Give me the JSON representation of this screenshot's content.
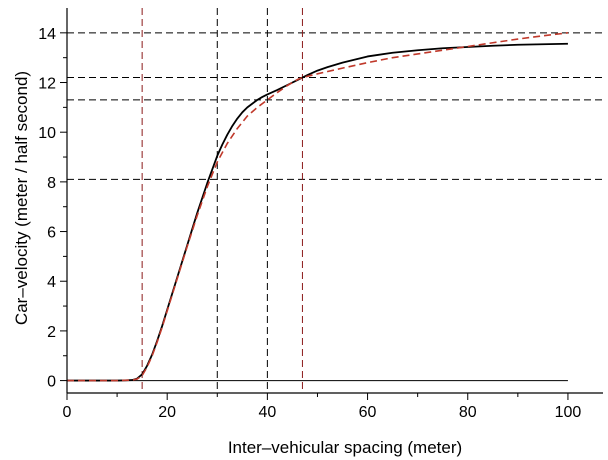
{
  "chart_data": {
    "type": "line",
    "title": "",
    "xlabel": "Inter–vehicular spacing (meter)",
    "ylabel": "Car–velocity (meter / half second)",
    "xlim": [
      0,
      107
    ],
    "ylim": [
      -0.5,
      15
    ],
    "x_ticks": [
      0,
      20,
      40,
      60,
      80,
      100
    ],
    "y_ticks": [
      0,
      2,
      4,
      6,
      8,
      10,
      12,
      14
    ],
    "x_tick_labels": [
      "0",
      "20",
      "40",
      "60",
      "80",
      "100"
    ],
    "y_tick_labels": [
      "0",
      "2",
      "4",
      "6",
      "8",
      "10",
      "12",
      "14"
    ],
    "grid": false,
    "series": [
      {
        "style": "solid",
        "color": "#000000",
        "x": [
          0,
          10,
          13,
          14,
          15,
          16,
          17,
          18,
          19,
          20,
          21,
          22,
          23,
          24,
          25,
          26,
          27,
          28,
          29,
          30,
          31,
          32,
          33,
          34,
          35,
          36,
          37,
          38,
          39,
          40,
          42,
          44,
          46,
          48,
          50,
          52,
          55,
          60,
          65,
          70,
          75,
          80,
          85,
          90,
          95,
          100
        ],
        "y": [
          0,
          0,
          0.02,
          0.08,
          0.25,
          0.6,
          1.05,
          1.6,
          2.2,
          2.85,
          3.5,
          4.15,
          4.8,
          5.45,
          6.1,
          6.75,
          7.35,
          7.95,
          8.5,
          9.05,
          9.5,
          9.9,
          10.25,
          10.55,
          10.8,
          11.0,
          11.15,
          11.3,
          11.42,
          11.52,
          11.7,
          11.9,
          12.1,
          12.3,
          12.48,
          12.62,
          12.8,
          13.05,
          13.2,
          13.3,
          13.38,
          13.43,
          13.48,
          13.52,
          13.54,
          13.56
        ]
      },
      {
        "style": "dashed",
        "color": "#c0392b",
        "x": [
          0,
          10,
          13,
          14,
          15,
          16,
          17,
          18,
          19,
          20,
          22,
          24,
          26,
          28,
          30,
          32,
          34,
          36,
          38,
          40,
          42,
          44,
          46,
          47,
          50,
          55,
          60,
          65,
          70,
          75,
          80,
          85,
          90,
          95,
          100
        ],
        "y": [
          0,
          0,
          0.02,
          0.06,
          0.2,
          0.55,
          1.0,
          1.55,
          2.15,
          2.8,
          4.1,
          5.4,
          6.65,
          7.8,
          8.8,
          9.55,
          10.15,
          10.65,
          11.0,
          11.3,
          11.6,
          11.88,
          12.12,
          12.2,
          12.35,
          12.58,
          12.8,
          13.0,
          13.15,
          13.3,
          13.45,
          13.6,
          13.75,
          13.88,
          14.0
        ]
      }
    ],
    "reference_lines": {
      "horizontal": [
        {
          "y": 0,
          "style": "solid",
          "color": "#000000",
          "x_end": 100
        },
        {
          "y": 8.1,
          "style": "dashed",
          "color": "#000000"
        },
        {
          "y": 11.3,
          "style": "dashed",
          "color": "#000000"
        },
        {
          "y": 12.2,
          "style": "dashed",
          "color": "#000000"
        },
        {
          "y": 14.0,
          "style": "dashed",
          "color": "#000000"
        }
      ],
      "vertical": [
        {
          "x": 15,
          "style": "dashed",
          "color": "#8b1a1a"
        },
        {
          "x": 30,
          "style": "dashed",
          "color": "#000000"
        },
        {
          "x": 40,
          "style": "dashed",
          "color": "#000000"
        },
        {
          "x": 47,
          "style": "dashed",
          "color": "#8b1a1a"
        }
      ]
    }
  }
}
